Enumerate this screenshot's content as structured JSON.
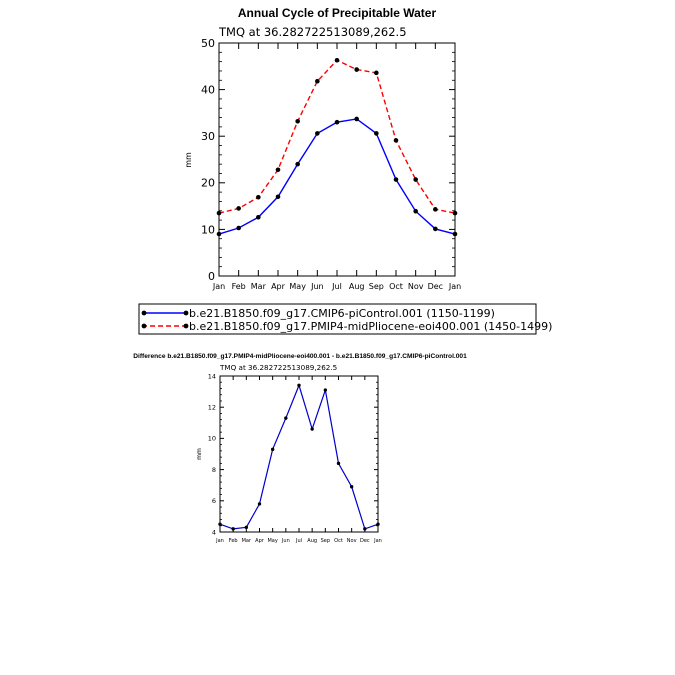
{
  "chart_data": [
    {
      "type": "line",
      "title": "Annual Cycle of Precipitable Water",
      "subtitle": "TMQ  at  36.282722513089,262.5",
      "xlabel": "",
      "ylabel": "mm",
      "categories": [
        "Jan",
        "Feb",
        "Mar",
        "Apr",
        "May",
        "Jun",
        "Jul",
        "Aug",
        "Sep",
        "Oct",
        "Nov",
        "Dec",
        "Jan"
      ],
      "ylim": [
        0,
        50
      ],
      "yticks": [
        0,
        10,
        20,
        30,
        40,
        50
      ],
      "grid": false,
      "legend_placement": "bottom",
      "series": [
        {
          "name": "b.e21.B1850.f09_g17.CMIP6-piControl.001 (1150-1199)",
          "color": "#0000ff",
          "dash": "solid",
          "values": [
            9.0,
            10.3,
            12.6,
            17.0,
            24.0,
            30.6,
            33.0,
            33.7,
            30.6,
            20.7,
            13.9,
            10.1,
            9.0
          ]
        },
        {
          "name": "b.e21.B1850.f09_g17.PMIP4-midPliocene-eoi400.001 (1450-1499)",
          "color": "#ff0000",
          "dash": "dashed",
          "values": [
            13.5,
            14.5,
            16.9,
            22.8,
            33.2,
            41.8,
            46.3,
            44.3,
            43.6,
            29.1,
            20.7,
            14.3,
            13.5
          ]
        }
      ]
    },
    {
      "type": "line",
      "title": "Difference b.e21.B1850.f09_g17.PMIP4-midPliocene-eoi400.001 - b.e21.B1850.f09_g17.CMIP6-piControl.001",
      "subtitle": "TMQ  at  36.282722513089,262.5",
      "xlabel": "",
      "ylabel": "mm",
      "categories": [
        "Jan",
        "Feb",
        "Mar",
        "Apr",
        "May",
        "Jun",
        "Jul",
        "Aug",
        "Sep",
        "Oct",
        "Nov",
        "Dec",
        "Jan"
      ],
      "ylim": [
        4,
        14
      ],
      "yticks": [
        4,
        6,
        8,
        10,
        12,
        14
      ],
      "grid": false,
      "series": [
        {
          "color": "#0000cc",
          "dash": "solid",
          "values": [
            4.5,
            4.2,
            4.3,
            5.8,
            9.3,
            11.3,
            13.4,
            10.6,
            13.1,
            8.4,
            6.9,
            4.2,
            4.5
          ]
        }
      ]
    }
  ]
}
